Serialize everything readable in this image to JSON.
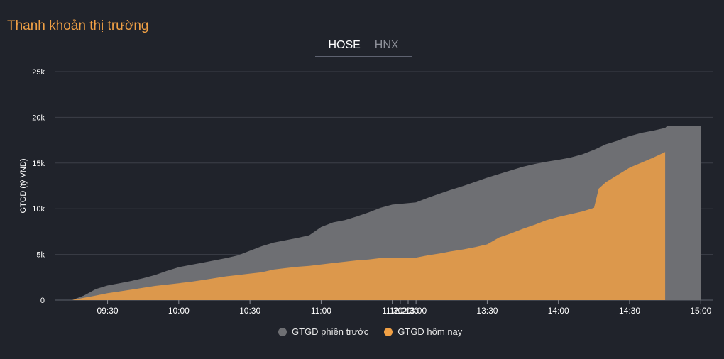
{
  "header": {
    "title": "Thanh khoản thị trường"
  },
  "tabs": [
    {
      "label": "HOSE",
      "active": true
    },
    {
      "label": "HNX",
      "active": false
    }
  ],
  "colors": {
    "previous": "#6e6f73",
    "today": "#f0a045",
    "title": "#f0a045"
  },
  "chart_data": {
    "type": "area",
    "ylabel": "GTGD (tỷ VND)",
    "xlabel": "",
    "ylim": [
      0,
      25000
    ],
    "yticks": [
      0,
      5000,
      10000,
      15000,
      20000,
      25000
    ],
    "ytick_labels": [
      "0",
      "5k",
      "10k",
      "15k",
      "20k",
      "25k"
    ],
    "xticks": [
      "09:30",
      "10:00",
      "10:30",
      "11:00",
      "11:30",
      "12:00",
      "12:30",
      "13:00",
      "13:30",
      "14:00",
      "14:30",
      "15:00"
    ],
    "xlim": [
      "09:08",
      "15:05"
    ],
    "grid": true,
    "legend_position": "bottom",
    "series": [
      {
        "name": "GTGD phiên trước",
        "color": "#6e6f73",
        "x": [
          "09:15",
          "09:20",
          "09:25",
          "09:30",
          "09:35",
          "09:40",
          "09:45",
          "09:50",
          "09:55",
          "10:00",
          "10:05",
          "10:10",
          "10:15",
          "10:20",
          "10:25",
          "10:30",
          "10:35",
          "10:40",
          "10:45",
          "10:50",
          "10:55",
          "11:00",
          "11:05",
          "11:10",
          "11:15",
          "11:20",
          "11:25",
          "11:30",
          "13:00",
          "13:05",
          "13:10",
          "13:15",
          "13:20",
          "13:25",
          "13:30",
          "13:35",
          "13:40",
          "13:45",
          "13:50",
          "13:55",
          "14:00",
          "14:05",
          "14:10",
          "14:15",
          "14:20",
          "14:25",
          "14:30",
          "14:35",
          "14:40",
          "14:45",
          "14:46",
          "15:00"
        ],
        "values": [
          0,
          500,
          1200,
          1600,
          1850,
          2100,
          2400,
          2750,
          3200,
          3600,
          3850,
          4100,
          4350,
          4600,
          4900,
          5400,
          5900,
          6300,
          6550,
          6800,
          7100,
          8000,
          8500,
          8750,
          9150,
          9600,
          10100,
          10450,
          10700,
          11200,
          11650,
          12100,
          12500,
          12950,
          13400,
          13800,
          14200,
          14600,
          14900,
          15150,
          15350,
          15600,
          15950,
          16450,
          17050,
          17450,
          17950,
          18300,
          18550,
          18850,
          19100,
          19100
        ]
      },
      {
        "name": "GTGD hôm nay",
        "color": "#f0a045",
        "x": [
          "09:15",
          "09:20",
          "09:25",
          "09:30",
          "09:35",
          "09:40",
          "09:45",
          "09:50",
          "09:55",
          "10:00",
          "10:05",
          "10:10",
          "10:15",
          "10:20",
          "10:25",
          "10:30",
          "10:35",
          "10:40",
          "10:45",
          "10:50",
          "10:55",
          "11:00",
          "11:05",
          "11:10",
          "11:15",
          "11:20",
          "11:25",
          "11:30",
          "13:00",
          "13:05",
          "13:10",
          "13:15",
          "13:20",
          "13:25",
          "13:30",
          "13:35",
          "13:40",
          "13:45",
          "13:50",
          "13:55",
          "14:00",
          "14:05",
          "14:10",
          "14:15",
          "14:17",
          "14:20",
          "14:25",
          "14:30",
          "14:35",
          "14:40",
          "14:45"
        ],
        "values": [
          0,
          250,
          500,
          750,
          950,
          1150,
          1350,
          1550,
          1700,
          1850,
          2000,
          2200,
          2400,
          2600,
          2750,
          2900,
          3050,
          3350,
          3500,
          3650,
          3750,
          3900,
          4050,
          4200,
          4350,
          4450,
          4600,
          4650,
          4650,
          4900,
          5100,
          5350,
          5550,
          5800,
          6100,
          6850,
          7300,
          7800,
          8250,
          8750,
          9100,
          9400,
          9700,
          10100,
          12200,
          12900,
          13700,
          14500,
          15050,
          15600,
          16200
        ]
      }
    ]
  }
}
